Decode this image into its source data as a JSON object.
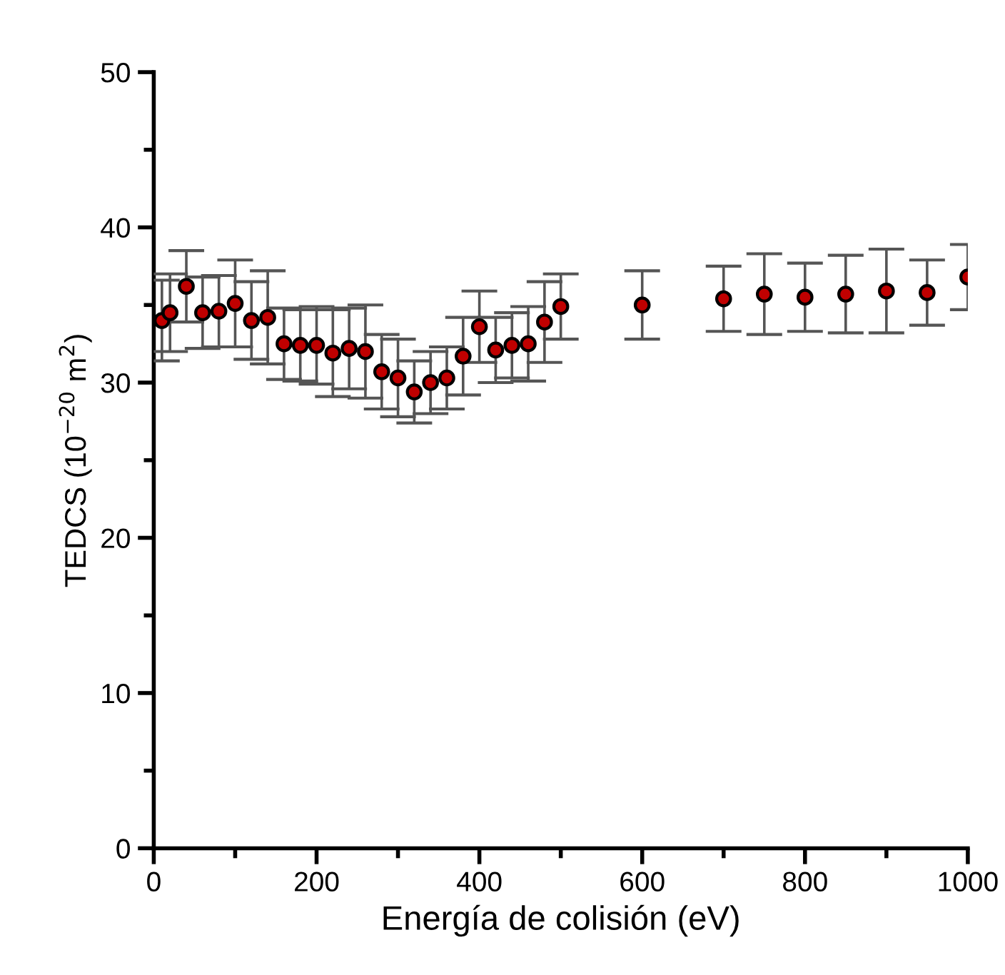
{
  "chart_data": {
    "type": "scatter",
    "xlabel": "Energía de colisión (eV)",
    "ylabel": "TEDCS (10$^{−20}$ m$^{2}$)",
    "x": [
      10,
      20,
      40,
      60,
      80,
      100,
      120,
      140,
      160,
      180,
      200,
      220,
      240,
      260,
      280,
      300,
      320,
      340,
      360,
      380,
      400,
      420,
      440,
      460,
      480,
      500,
      600,
      700,
      750,
      800,
      850,
      900,
      950,
      1000
    ],
    "series": [
      {
        "color": "#c00000",
        "values": [
          34.0,
          34.5,
          36.2,
          34.5,
          34.6,
          35.1,
          34.0,
          34.2,
          32.5,
          32.4,
          32.4,
          31.9,
          32.2,
          32.0,
          30.7,
          30.3,
          29.4,
          30.0,
          30.3,
          31.7,
          33.6,
          32.1,
          32.4,
          32.5,
          33.9,
          34.9,
          35.0,
          35.4,
          35.7,
          35.5,
          35.7,
          35.9,
          35.8,
          36.8
        ],
        "errors": [
          2.6,
          2.5,
          2.3,
          2.3,
          2.3,
          2.8,
          2.5,
          3.0,
          2.3,
          2.3,
          2.5,
          2.8,
          2.6,
          3.0,
          2.4,
          2.5,
          2.0,
          2.0,
          2.0,
          2.5,
          2.3,
          2.1,
          2.1,
          2.4,
          2.6,
          2.1,
          2.2,
          2.1,
          2.6,
          2.2,
          2.5,
          2.7,
          2.1,
          2.1
        ]
      }
    ],
    "marker": "circle",
    "xlim": [
      0,
      1000
    ],
    "ylim": [
      0,
      50
    ],
    "xticks": [
      0,
      200,
      400,
      600,
      800,
      1000
    ],
    "yticks": [
      0,
      10,
      20,
      30,
      40,
      50
    ],
    "grid": false,
    "legend": false
  }
}
